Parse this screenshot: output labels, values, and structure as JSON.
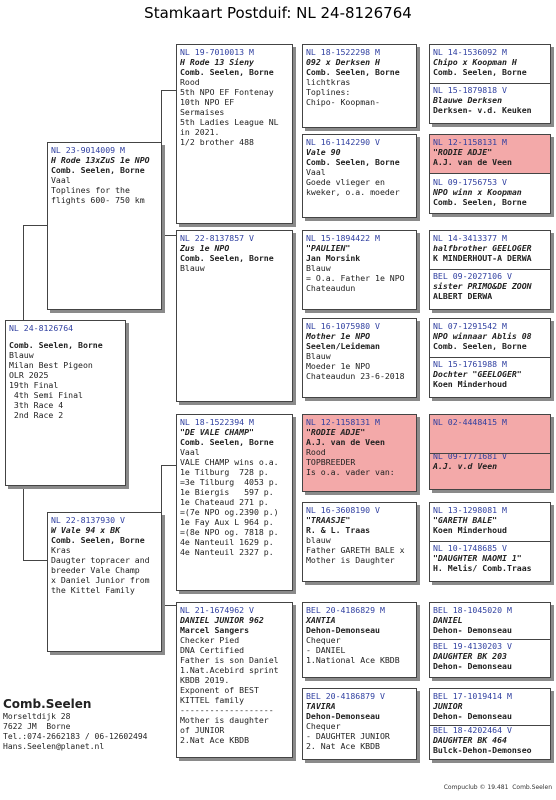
{
  "title": "Stamkaart Postduif: NL  24-8126764",
  "subject": {
    "ring": "NL  24-8126764",
    "owner": "Comb. Seelen, Borne",
    "lines": [
      "Blauw",
      "Milan Best Pigeon",
      "OLR 2025",
      "19th Final",
      " 4th Semi Final",
      " 3th Race 4",
      " 2nd Race 2"
    ]
  },
  "father": {
    "ring": "NL  23-9014009 M",
    "name": "H Rode 13xZuS 1e NPO",
    "owner": "Comb. Seelen, Borne",
    "lines": [
      "Vaal",
      "Toplines for the",
      "flights 600- 750 km"
    ]
  },
  "mother": {
    "ring": "NL  22-8137930 V",
    "name": "W Vale 94 x BK",
    "owner": "Comb. Seelen, Borne",
    "lines": [
      "Kras",
      "Daugter topracer and",
      "breeder Vale Champ",
      "x Daniel Junior from",
      "the Kittel Family"
    ]
  },
  "ff": {
    "ring": "NL  19-7010013 M",
    "name": "H Rode 13 Sieny",
    "owner": "Comb. Seelen, Borne",
    "lines": [
      "Rood",
      "5th NPO EF Fontenay",
      "10th NPO EF",
      "Sermaises",
      "5th Ladies League NL",
      "in 2021.",
      "1/2 brother 488"
    ]
  },
  "fm": {
    "ring": "NL  22-8137857 V",
    "name": "Zus 1e NPO",
    "owner": "Comb. Seelen, Borne",
    "lines": [
      "Blauw"
    ]
  },
  "mf": {
    "ring": "NL  18-1522394 M",
    "name": "\"DE VALE CHAMP\"",
    "owner": "Comb. Seelen, Borne",
    "lines": [
      "Vaal",
      "VALE CHAMP wins o.a.",
      "1e Tilburg  728 p.",
      "=3e Tilburg  4053 p.",
      "1e Biergis   597 p.",
      "1e Chateaud 271 p.",
      "=(7e NPO og.2390 p.)",
      "1e Fay Aux L 964 p.",
      "=(8e NPO og. 7818 p.",
      "4e Nanteuil 1629 p.",
      "4e Nanteuil 2327 p."
    ]
  },
  "mm": {
    "ring": "NL  21-1674962 V",
    "name": "DANIEL JUNIOR 962",
    "owner": "Marcel Sangers",
    "lines": [
      "Checker Pied",
      "DNA Certified",
      "Father is son Daniel",
      "1.Nat.Acebird sprint",
      "KBDB 2019.",
      "Exponent of BEST",
      "KITTEL family",
      "-------------------",
      "Mother is daughter",
      "of JUNIOR",
      "2.Nat Ace KBDB"
    ]
  },
  "fff": {
    "ring": "NL  18-1522298 M",
    "name": "092 x Derksen H",
    "owner": "Comb. Seelen, Borne",
    "lines": [
      "lichtkras",
      "Toplines:",
      "Chipo- Koopman-"
    ]
  },
  "ffm": {
    "ring": "NL  16-1142290 V",
    "name": "Vale 90",
    "owner": "Comb. Seelen, Borne",
    "lines": [
      "Vaal",
      "Goede vlieger en",
      "kweker, o.a. moeder"
    ]
  },
  "fmf": {
    "ring": "NL  15-1894422 M",
    "name": "\"PAULIEN\"",
    "owner": "Jan Morsink",
    "lines": [
      "Blauw",
      "= O.a. Father 1e NPO",
      "Chateaudun"
    ]
  },
  "fmm": {
    "ring": "NL  16-1075980 V",
    "name": "Mother 1e NPO",
    "owner": "Seelen/Leideman",
    "lines": [
      "Blauw",
      "Moeder 1e NPO",
      "Chateaudun 23-6-2018"
    ]
  },
  "mff": {
    "ring": "NL  12-1158131 M",
    "name": "\"RODIE ADJE\"",
    "owner": "A.J. van de Veen",
    "lines": [
      "Rood",
      "TOPBREEDER",
      "Is o.a. vader van:"
    ]
  },
  "mfm": {
    "ring": "NL  16-3608190 V",
    "name": "\"TRAASJE\"",
    "owner": "R. & L. Traas",
    "lines": [
      "blauw",
      "Father GARETH BALE x",
      "Mother is Daughter"
    ]
  },
  "mmf": {
    "ring": "BEL 20-4186829 M",
    "name": "XANTIA",
    "owner": "Dehon-Demonseau",
    "lines": [
      "Chequer",
      "- DANIEL",
      "1.National Ace KBDB"
    ]
  },
  "mmm": {
    "ring": "BEL 20-4186879 V",
    "name": "TAVIRA",
    "owner": "Dehon-Demonseau",
    "lines": [
      "Chequer",
      "- DAUGHTER JUNIOR",
      "2. Nat Ace KBDB"
    ]
  },
  "g4": [
    {
      "ring": "NL  14-1536092 M",
      "name": "Chipo x Koopman H",
      "owner": "Comb. Seelen, Borne"
    },
    {
      "ring": "NL  15-1879818 V",
      "name": "Blauwe Derksen",
      "owner": "Derksen- v.d. Keuken"
    },
    {
      "ring": "NL  12-1158131 M",
      "name": "\"RODIE ADJE\"",
      "owner": "A.J. van de Veen"
    },
    {
      "ring": "NL  09-1756753 V",
      "name": "NPO winn x Koopman",
      "owner": "Comb. Seelen, Borne"
    },
    {
      "ring": "NL  14-3413377 M",
      "name": "halfbrother GEELOGER",
      "owner": "K MINDERHOUT-A DERWA"
    },
    {
      "ring": "BEL 09-2027106 V",
      "name": "sister PRIMO&DE ZOON",
      "owner": "ALBERT DERWA"
    },
    {
      "ring": "NL  07-1291542 M",
      "name": "NPO winnaar Ablis 08",
      "owner": "Comb. Seelen, Borne"
    },
    {
      "ring": "NL  15-1761988 M",
      "name": "Dochter \"GEELOGER\"",
      "owner": "Koen Minderhoud"
    },
    {
      "ring": "NL  02-4448415 M",
      "name": "",
      "owner": ""
    },
    {
      "ring": "NL  09-1771681 V",
      "name": "A.J. v.d Veen",
      "owner": ""
    },
    {
      "ring": "NL  13-1298081 M",
      "name": "\"GARETH BALE\"",
      "owner": "Koen Minderhoud"
    },
    {
      "ring": "NL  10-1748685 V",
      "name": "\"DAUGHTER NAOMI 1\"",
      "owner": "H. Melis/ Comb.Traas"
    },
    {
      "ring": "BEL 18-1045020 M",
      "name": "DANIEL",
      "owner": "Dehon- Demonseau"
    },
    {
      "ring": "BEL 19-4130203 V",
      "name": "DAUGHTER BK 203",
      "owner": "Dehon- Demonseau"
    },
    {
      "ring": "BEL 17-1019414 M",
      "name": "JUNIOR",
      "owner": "Dehon- Demonseau"
    },
    {
      "ring": "BEL 18-4202464 V",
      "name": "DAUGHTER BK 464",
      "owner": "Bulck-Dehon-Demonseo"
    }
  ],
  "breeder": {
    "name": "Comb.Seelen",
    "lines": [
      "Morseltdijk 28",
      "7622 JM  Borne",
      "Tel.:074-2662183 / 06-12602494",
      "Hans.Seelen@planet.nl"
    ]
  },
  "footer": "Compuclub © 19.481  Comb.Seelen"
}
